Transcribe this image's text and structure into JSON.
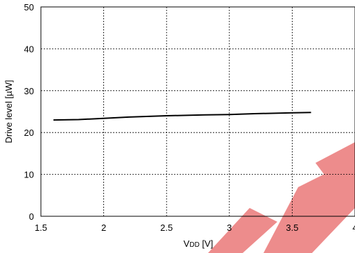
{
  "chart_data": {
    "type": "line",
    "xlabel": "VDD [V]",
    "xlabel_main": "V",
    "xlabel_sub": "DD",
    "xlabel_unit": " [V]",
    "ylabel": "Drive level [µW]",
    "xlim": [
      1.5,
      4
    ],
    "ylim": [
      0,
      50
    ],
    "xticks": [
      "1.5",
      "2",
      "2.5",
      "3",
      "3.5",
      "4"
    ],
    "yticks": [
      "0",
      "10",
      "20",
      "30",
      "40",
      "50"
    ],
    "grid": true,
    "series": [
      {
        "x": [
          1.6,
          1.8,
          2.0,
          2.2,
          2.5,
          2.8,
          3.0,
          3.2,
          3.5,
          3.65
        ],
        "y": [
          23.0,
          23.1,
          23.4,
          23.7,
          24.0,
          24.2,
          24.3,
          24.5,
          24.7,
          24.8
        ]
      }
    ],
    "watermark_color": "#e03030"
  }
}
